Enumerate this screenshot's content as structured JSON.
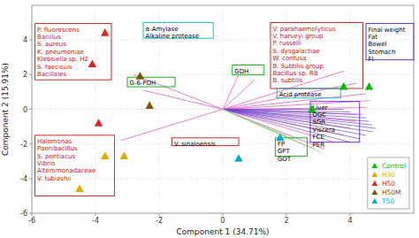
{
  "chart_data": {
    "type": "scatter",
    "xlabel": "Component 1 (34.71%)",
    "ylabel": "Component 2 (15.91%)",
    "xlim": [
      -6,
      6
    ],
    "ylim": [
      -6,
      6
    ],
    "xticks": [
      -6,
      -4,
      -2,
      0,
      2,
      4
    ],
    "yticks": [
      -6,
      -4,
      -2,
      0,
      2,
      4
    ],
    "grid": true,
    "legend": "lower right",
    "marker": "triangle",
    "series": [
      {
        "name": "Control",
        "color": "#00bb00",
        "x": [
          3.8,
          4.6,
          2.8
        ],
        "values": [
          1.3,
          1.3,
          0.0
        ]
      },
      {
        "name": "H30",
        "color": "#ddaa00",
        "x": [
          -3.7,
          -3.1,
          -4.5
        ],
        "values": [
          -2.7,
          -2.7,
          -4.6
        ]
      },
      {
        "name": "H50",
        "color": "#dd2222",
        "x": [
          -3.7,
          -4.1,
          -3.9
        ],
        "values": [
          4.4,
          2.6,
          -0.8
        ]
      },
      {
        "name": "H50M",
        "color": "#775500",
        "x": [
          -2.6,
          -2.3
        ],
        "values": [
          1.9,
          0.2
        ]
      },
      {
        "name": "T50",
        "color": "#00aacc",
        "x": [
          0.5,
          1.8
        ],
        "values": [
          -2.85,
          -1.65
        ]
      }
    ],
    "vectors": [
      {
        "color": "#dd44bb",
        "x": [
          3.8,
          4.2,
          4.5,
          4.6,
          4.5,
          4.4,
          4.2,
          4.0,
          3.8,
          3.5,
          3.2,
          1.0,
          0.5,
          -2.5,
          -2.8,
          -3.2
        ],
        "y": [
          2.2,
          1.5,
          0.9,
          0.5,
          0.1,
          -0.3,
          -0.7,
          -1.1,
          -1.5,
          -1.9,
          -2.3,
          1.7,
          2.0,
          1.1,
          2.0,
          -1.8
        ]
      },
      {
        "color": "#6644cc",
        "x": [
          3.8,
          4.0,
          4.2,
          4.5,
          4.6,
          4.7,
          4.8,
          4.7,
          4.5,
          4.3,
          4.0
        ],
        "y": [
          0.0,
          -0.15,
          -0.3,
          -0.5,
          -0.7,
          -0.9,
          -1.1,
          -1.3,
          -1.5,
          -1.7,
          -1.9
        ]
      },
      {
        "color": "#99cc88",
        "x": [
          2.0,
          2.3,
          2.6,
          2.9,
          3.1
        ],
        "y": [
          -1.5,
          -1.8,
          -2.1,
          -2.3,
          -2.5
        ]
      }
    ],
    "annotations": [
      {
        "text": "P. fluorescens\nBacillus\nS. aureus\nK. pneumoniae\nKlebsiella sp. H2\nS. faecisuis\nBacillales",
        "x0": -5.9,
        "y0": 4.95,
        "x1": -3.5,
        "y1": 1.7,
        "color": "#cc1111",
        "text_color": "#cc1111"
      },
      {
        "text": "Halomonas\nPaenibacillus\nS. pontiacus\nVibrio\nAlteromonadaceae\nV. tubiashii",
        "x0": -5.9,
        "y0": -1.5,
        "x1": -3.4,
        "y1": -5.0,
        "color": "#cc1111",
        "text_color": "#cc1111"
      },
      {
        "text": "α-Amylase\nAlkaline protease",
        "x0": -2.5,
        "y0": 5.0,
        "x1": -0.3,
        "y1": 4.1,
        "color": "#00bbbb",
        "text_color": "black"
      },
      {
        "text": "G-6-PDH",
        "x0": -3.0,
        "y0": 1.85,
        "x1": -1.5,
        "y1": 1.3,
        "color": "#00aa00",
        "text_color": "black"
      },
      {
        "text": "GDH",
        "x0": 0.3,
        "y0": 2.55,
        "x1": 1.3,
        "y1": 2.0,
        "color": "#00aa00",
        "text_color": "black"
      },
      {
        "text": "V. sinaloensis",
        "x0": -1.6,
        "y0": -1.65,
        "x1": 0.5,
        "y1": -2.1,
        "color": "#cc1111",
        "text_color": "black"
      },
      {
        "text": "FP\nGPT\nGOT",
        "x0": 1.65,
        "y0": -1.65,
        "x1": 2.65,
        "y1": -2.7,
        "color": "#00aa00",
        "text_color": "black"
      },
      {
        "text": "V. parahaemolyticus\nV. harveyi group\nP. russelli\nS. dysgalactiae\nW. confusa\nB. Subtilis group\nBacillus sp. R8\nB. subtilis",
        "x0": 1.5,
        "y0": 5.0,
        "x1": 4.4,
        "y1": 1.2,
        "color": "#cc1111",
        "text_color": "#cc1111"
      },
      {
        "text": "Acid protease",
        "x0": 1.7,
        "y0": 1.2,
        "x1": 3.7,
        "y1": 0.65,
        "color": "#00bbbb",
        "text_color": "black"
      },
      {
        "text": "Final weight\nFat\nBowel\nStomach\nFI",
        "x0": 4.5,
        "y0": 4.95,
        "x1": 6.0,
        "y1": 2.85,
        "color": "#5522cc",
        "text_color": "black"
      },
      {
        "text": "Liver\nDGC\nSGR\nViscera\nFCE\nPER",
        "x0": 2.75,
        "y0": 0.45,
        "x1": 4.3,
        "y1": -1.9,
        "color": "#5522cc",
        "text_color": "black"
      }
    ]
  }
}
